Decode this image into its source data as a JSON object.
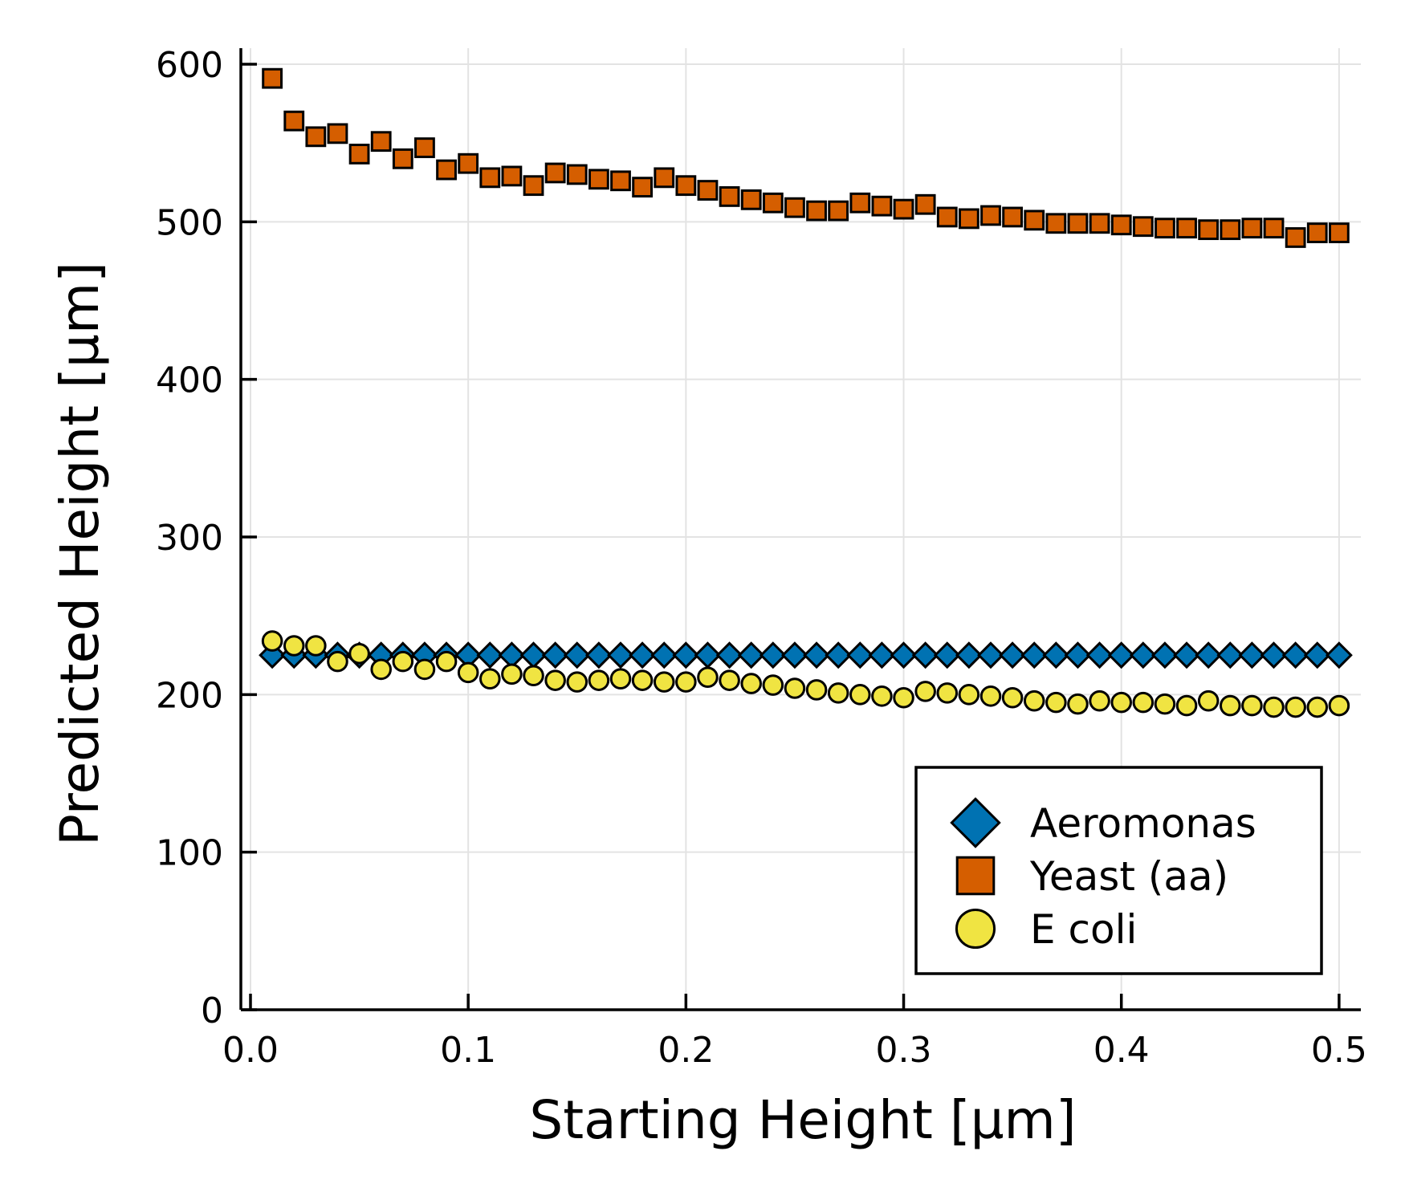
{
  "chart_data": {
    "type": "scatter",
    "xlabel": "Starting Height [µm]",
    "ylabel": "Predicted Height [µm]",
    "xlim": [
      0.0,
      0.51
    ],
    "ylim": [
      0,
      600
    ],
    "xticks": [
      0.0,
      0.1,
      0.2,
      0.3,
      0.4,
      0.5
    ],
    "xtick_labels": [
      "0.0",
      "0.1",
      "0.2",
      "0.3",
      "0.4",
      "0.5"
    ],
    "yticks": [
      0,
      100,
      200,
      300,
      400,
      500,
      600
    ],
    "ytick_labels": [
      "0",
      "100",
      "200",
      "300",
      "400",
      "500",
      "600"
    ],
    "grid": true,
    "legend_position": "bottom-right",
    "x": [
      0.01,
      0.02,
      0.03,
      0.04,
      0.05,
      0.06,
      0.07,
      0.08,
      0.09,
      0.1,
      0.11,
      0.12,
      0.13,
      0.14,
      0.15,
      0.16,
      0.17,
      0.18,
      0.19,
      0.2,
      0.21,
      0.22,
      0.23,
      0.24,
      0.25,
      0.26,
      0.27,
      0.28,
      0.29,
      0.3,
      0.31,
      0.32,
      0.33,
      0.34,
      0.35,
      0.36,
      0.37,
      0.38,
      0.39,
      0.4,
      0.41,
      0.42,
      0.43,
      0.44,
      0.45,
      0.46,
      0.47,
      0.48,
      0.49,
      0.5
    ],
    "series": [
      {
        "name": "Aeromonas",
        "marker": "diamond",
        "color": "#0072b2",
        "values": [
          225,
          225,
          225,
          225,
          225,
          225,
          225,
          225,
          225,
          225,
          225,
          225,
          225,
          225,
          225,
          225,
          225,
          225,
          225,
          225,
          225,
          225,
          225,
          225,
          225,
          225,
          225,
          225,
          225,
          225,
          225,
          225,
          225,
          225,
          225,
          225,
          225,
          225,
          225,
          225,
          225,
          225,
          225,
          225,
          225,
          225,
          225,
          225,
          225,
          225
        ]
      },
      {
        "name": "Yeast (aa)",
        "marker": "square",
        "color": "#d55e00",
        "values": [
          591,
          564,
          554,
          556,
          543,
          551,
          540,
          547,
          533,
          537,
          528,
          529,
          523,
          531,
          530,
          527,
          526,
          522,
          528,
          523,
          520,
          516,
          514,
          512,
          509,
          507,
          507,
          512,
          510,
          508,
          511,
          503,
          502,
          504,
          503,
          501,
          499,
          499,
          499,
          498,
          497,
          496,
          496,
          495,
          495,
          496,
          496,
          490,
          493,
          493
        ]
      },
      {
        "name": "E coli",
        "marker": "circle",
        "color": "#f0e442",
        "values": [
          234,
          231,
          231,
          221,
          226,
          216,
          221,
          216,
          221,
          214,
          210,
          213,
          212,
          209,
          208,
          209,
          210,
          209,
          208,
          208,
          211,
          209,
          207,
          206,
          204,
          203,
          201,
          200,
          199,
          198,
          202,
          201,
          200,
          199,
          198,
          196,
          195,
          194,
          196,
          195,
          195,
          194,
          193,
          196,
          193,
          193,
          192,
          192,
          192,
          193
        ]
      }
    ]
  }
}
